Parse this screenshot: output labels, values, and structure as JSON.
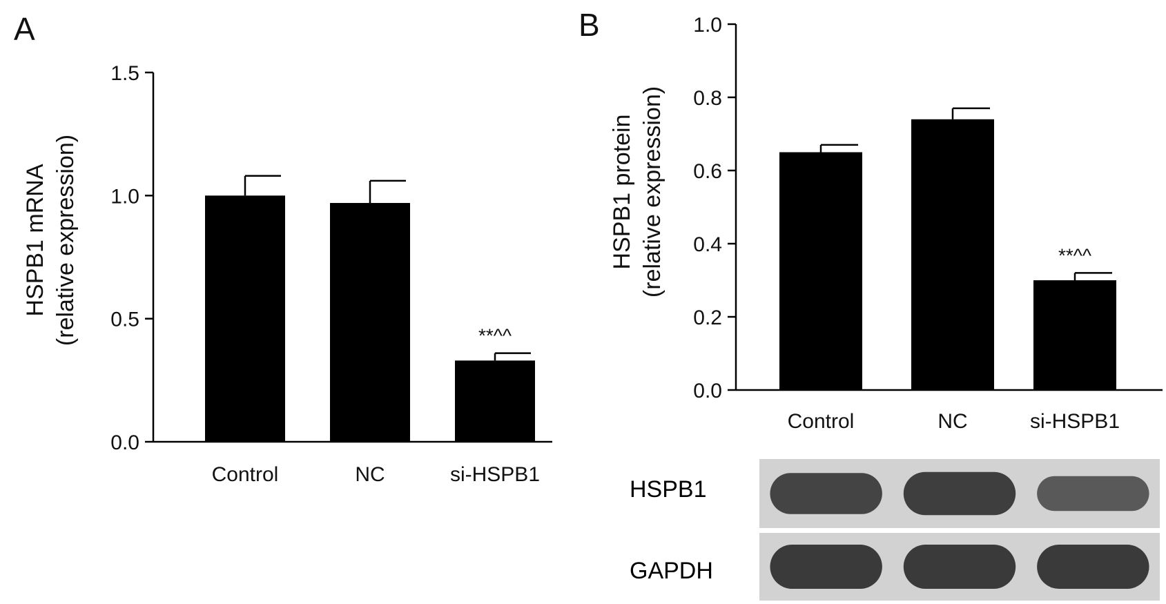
{
  "chart_data": [
    {
      "panel": "A",
      "type": "bar",
      "categories": [
        "Control",
        "NC",
        "si-HSPB1"
      ],
      "values": [
        1.0,
        0.97,
        0.33
      ],
      "error": [
        0.08,
        0.09,
        0.03
      ],
      "annotations": [
        {
          "category": "si-HSPB1",
          "text": "**^^"
        }
      ],
      "ylabel_line1": "HSPB1 mRNA",
      "ylabel_line2": "(relative expression)",
      "ylim": [
        0,
        1.5
      ],
      "yticks": [
        "0.0",
        "0.5",
        "1.0",
        "1.5"
      ],
      "bar_color": "#000000",
      "grid": false
    },
    {
      "panel": "B",
      "type": "bar",
      "categories": [
        "Control",
        "NC",
        "si-HSPB1"
      ],
      "values": [
        0.65,
        0.74,
        0.3
      ],
      "error": [
        0.02,
        0.03,
        0.02
      ],
      "annotations": [
        {
          "category": "si-HSPB1",
          "text": "**^^"
        }
      ],
      "ylabel_line1": "HSPB1 protein",
      "ylabel_line2": "(relative expression)",
      "ylim": [
        0,
        1.0
      ],
      "yticks": [
        "0.0",
        "0.2",
        "0.4",
        "0.6",
        "0.8",
        "1.0"
      ],
      "bar_color": "#000000",
      "grid": false
    }
  ],
  "western_blot": {
    "rows": [
      {
        "label": "HSPB1",
        "band_intensity": [
          0.85,
          0.95,
          0.55
        ]
      },
      {
        "label": "GAPDH",
        "band_intensity": [
          1.0,
          1.0,
          1.0
        ]
      }
    ],
    "lanes": [
      "Control",
      "NC",
      "si-HSPB1"
    ],
    "background_color": "#d2d2d2",
    "band_color": "#3a3a3a"
  }
}
